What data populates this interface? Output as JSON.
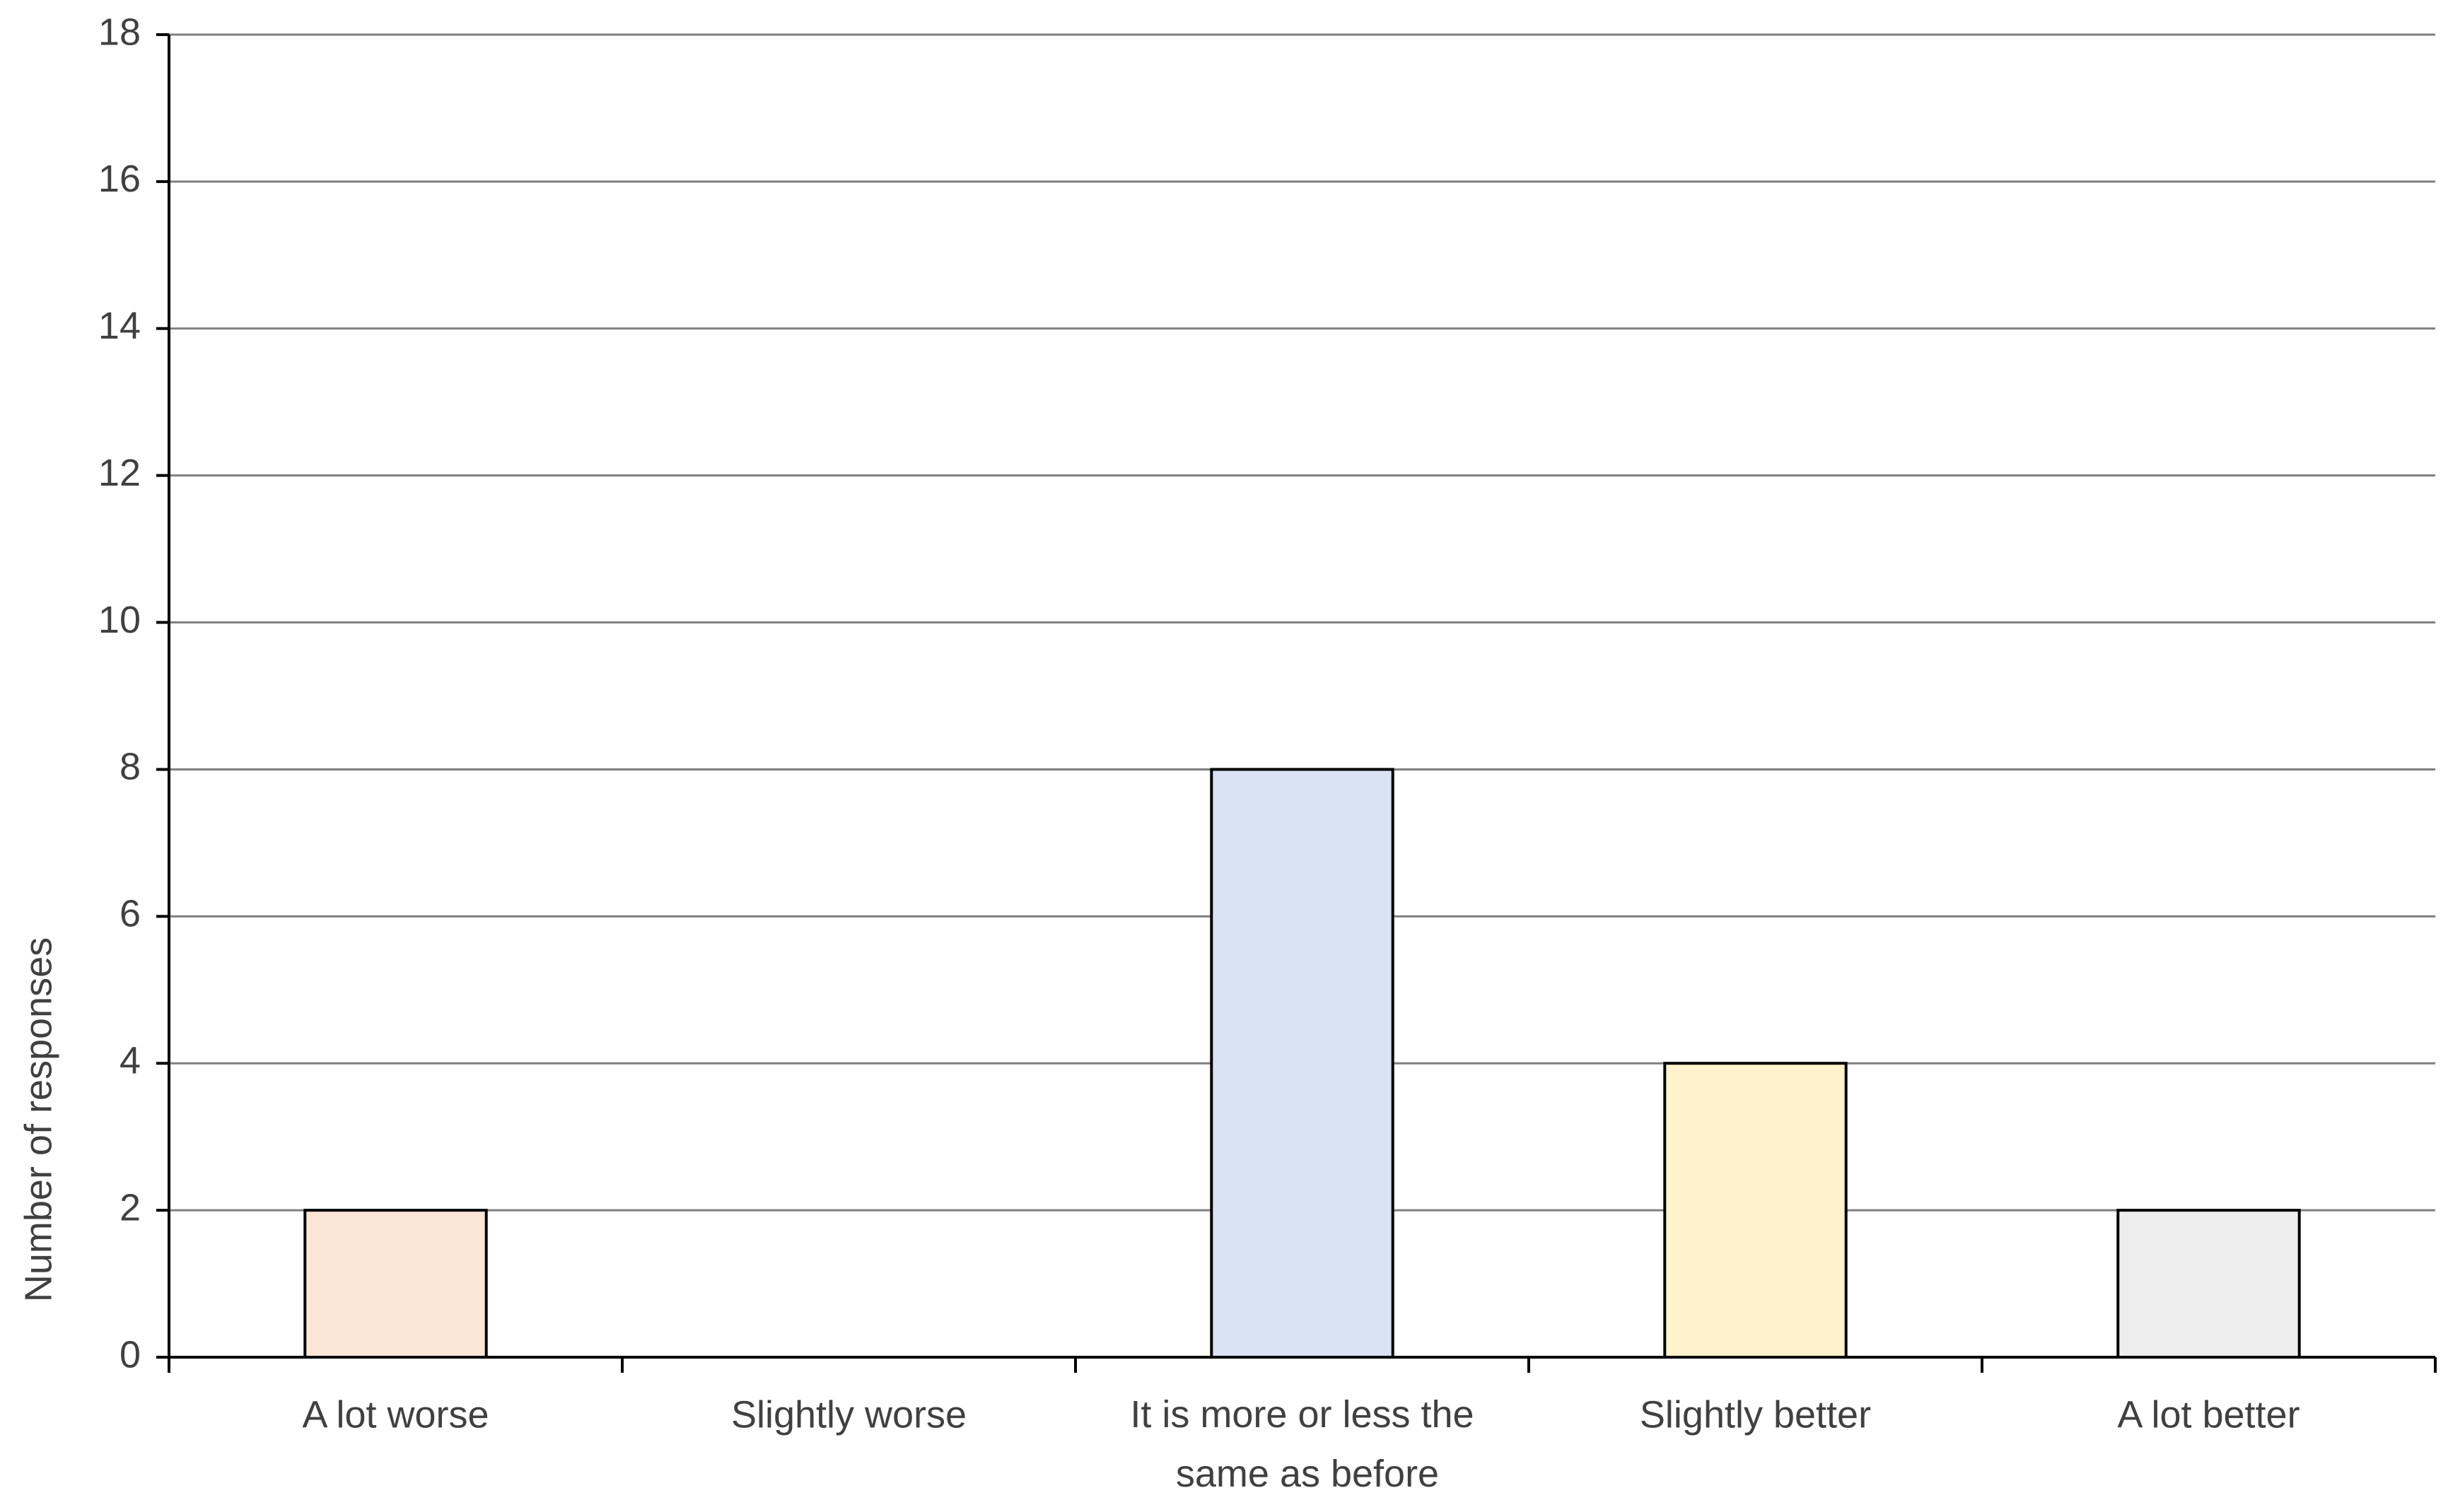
{
  "chart_data": {
    "type": "bar",
    "y_label": "Number of responses",
    "categories": [
      "A lot worse",
      "Slightly worse",
      "It is more or less the same as before",
      "Slightly better",
      "A lot better"
    ],
    "values": [
      2,
      0,
      8,
      4,
      2
    ],
    "colors": [
      "#fbe5d6",
      "#ffffff",
      "#dae3f3",
      "#fff2cc",
      "#ededed"
    ],
    "ylim": [
      0,
      18
    ],
    "yticks": [
      0,
      2,
      4,
      6,
      8,
      10,
      12,
      14,
      16,
      18
    ],
    "grid": true
  }
}
